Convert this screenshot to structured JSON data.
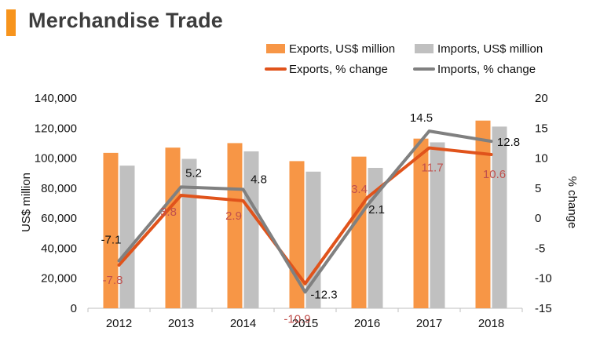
{
  "header": {
    "title": "Merchandise Trade"
  },
  "colors": {
    "accent": "#f7941d",
    "exports_bar": "#f79646",
    "imports_bar": "#c0c0c0",
    "exports_line": "#e0531b",
    "imports_line": "#808080",
    "exports_label": "#c0504d",
    "imports_label": "#111111"
  },
  "chart_data": {
    "type": "bar",
    "categories": [
      "2012",
      "2013",
      "2014",
      "2015",
      "2016",
      "2017",
      "2018"
    ],
    "ylabel": "US$ million",
    "y2label": "% change",
    "ylim": [
      0,
      140000
    ],
    "y2lim": [
      -15,
      20
    ],
    "yticks": [
      "0",
      "20,000",
      "40,000",
      "60,000",
      "80,000",
      "100,000",
      "120,000",
      "140,000"
    ],
    "y2ticks": [
      "-15",
      "-10",
      "-5",
      "0",
      "5",
      "10",
      "15",
      "20"
    ],
    "yticks_values": [
      0,
      20000,
      40000,
      60000,
      80000,
      100000,
      120000,
      140000
    ],
    "y2ticks_values": [
      -15,
      -10,
      -5,
      0,
      5,
      10,
      15,
      20
    ],
    "legend_position": "top-right",
    "series": [
      {
        "name": "Exports, US$ million",
        "type": "bar",
        "axis": "left",
        "values": [
          103500,
          107000,
          110000,
          98000,
          101000,
          113000,
          125000
        ]
      },
      {
        "name": "Imports, US$ million",
        "type": "bar",
        "axis": "left",
        "values": [
          95000,
          99500,
          104500,
          91000,
          93500,
          110500,
          121000
        ]
      },
      {
        "name": "Exports, % change",
        "type": "line",
        "axis": "right",
        "values": [
          -7.8,
          3.8,
          2.9,
          -10.9,
          3.4,
          11.7,
          10.6
        ],
        "labels": [
          "-7.8",
          "3.8",
          "2.9",
          "-10.9",
          "3.4",
          "11.7",
          "10.6"
        ]
      },
      {
        "name": "Imports, % change",
        "type": "line",
        "axis": "right",
        "values": [
          -7.1,
          5.2,
          4.8,
          -12.3,
          2.1,
          14.5,
          12.8
        ],
        "labels": [
          "-7.1",
          "5.2",
          "4.8",
          "-12.3",
          "2.1",
          "14.5",
          "12.8"
        ]
      }
    ]
  }
}
